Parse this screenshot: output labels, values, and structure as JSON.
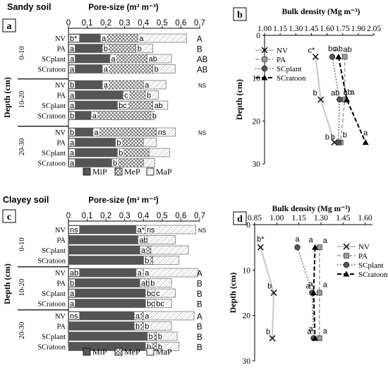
{
  "chart_data": [
    {
      "type": "bar",
      "panel": "a",
      "title": "Sandy soil",
      "xlabel": "Pore-size (m³ m⁻³)",
      "ylabel": "Depth (cm)",
      "xlim": [
        0,
        0.7
      ],
      "xticks": [
        "0",
        "0.1",
        "0.2",
        "0.3",
        "0.4",
        "0.5",
        "0.6",
        "0.7"
      ],
      "layers": [
        {
          "label": "0-10",
          "side": "A\nB\nAB\nAB"
        },
        {
          "label": "10-20",
          "side": "NS"
        },
        {
          "label": "20-30",
          "side": "NS"
        }
      ],
      "treatments": [
        "NV",
        "PA",
        "SCplant",
        "SCratoon"
      ],
      "legend": [
        "MiP",
        "MeP",
        "MaP"
      ],
      "rows": [
        {
          "layer": 0,
          "t": "NV",
          "MiP": 0.17,
          "MeP": 0.2,
          "MaP": 0.26,
          "lMi": "b*",
          "lMe": "a",
          "lMa": "a",
          "side": "A"
        },
        {
          "layer": 0,
          "t": "PA",
          "MiP": 0.18,
          "MeP": 0.18,
          "MaP": 0.09,
          "lMi": "a",
          "lMe": "b",
          "lMa": "b",
          "side": "B"
        },
        {
          "layer": 0,
          "t": "SCplant",
          "MiP": 0.22,
          "MeP": 0.2,
          "MaP": 0.13,
          "lMi": "a",
          "lMe": "a",
          "lMa": "ab",
          "side": "AB"
        },
        {
          "layer": 0,
          "t": "SCratoon",
          "MiP": 0.18,
          "MeP": 0.27,
          "MaP": 0.12,
          "lMi": "a",
          "lMe": "a",
          "lMa": "b",
          "side": "AB"
        },
        {
          "layer": 1,
          "t": "NV",
          "MiP": 0.18,
          "MeP": 0.22,
          "MaP": 0.12,
          "lMi": "b",
          "lMe": "a",
          "lMa": "a",
          "side": ""
        },
        {
          "layer": 1,
          "t": "PA",
          "MiP": 0.29,
          "MeP": 0.12,
          "MaP": 0.07,
          "lMi": "a",
          "lMe": "c",
          "lMa": "b",
          "side": ""
        },
        {
          "layer": 1,
          "t": "SCplant",
          "MiP": 0.26,
          "MeP": 0.19,
          "MaP": 0.08,
          "lMi": "a",
          "lMe": "bc",
          "lMa": "ab",
          "side": ""
        },
        {
          "layer": 1,
          "t": "SCratoon",
          "MiP": 0.12,
          "MeP": 0.32,
          "MaP": 0.02,
          "lMi": "b",
          "lMe": "a",
          "lMa": "b",
          "side": ""
        },
        {
          "layer": 2,
          "t": "NV",
          "MiP": 0.13,
          "MeP": 0.34,
          "MaP": 0.1,
          "lMi": "b",
          "lMe": "a",
          "lMa": "ns",
          "side": ""
        },
        {
          "layer": 2,
          "t": "PA",
          "MiP": 0.25,
          "MeP": 0.15,
          "MaP": 0.07,
          "lMi": "a",
          "lMe": "b",
          "lMa": "",
          "side": ""
        },
        {
          "layer": 2,
          "t": "SCplant",
          "MiP": 0.26,
          "MeP": 0.17,
          "MaP": 0.11,
          "lMi": "a",
          "lMe": "b",
          "lMa": "",
          "side": ""
        },
        {
          "layer": 2,
          "t": "SCratoon",
          "MiP": 0.23,
          "MeP": 0.17,
          "MaP": 0.06,
          "lMi": "a",
          "lMe": "b",
          "lMa": "",
          "side": ""
        }
      ]
    },
    {
      "type": "line",
      "panel": "b",
      "xlabel": "Bulk density (Mg m⁻³)",
      "ylabel": "Depth (cm)",
      "xlim": [
        1.0,
        2.05
      ],
      "xticks": [
        "1.00",
        "1.15",
        "1.30",
        "1.45",
        "1.60",
        "1.75",
        "1.90",
        "2.05"
      ],
      "ylim": [
        0,
        30
      ],
      "yticks": [
        "0",
        "10",
        "20",
        "30"
      ],
      "depths": [
        5,
        15,
        25
      ],
      "series": [
        {
          "name": "NV",
          "values": [
            1.49,
            1.54,
            1.67
          ],
          "labels": [
            "c*",
            "b",
            "b"
          ]
        },
        {
          "name": "PA",
          "values": [
            1.77,
            1.77,
            1.73
          ],
          "labels": [
            "ab",
            "ab",
            "b"
          ]
        },
        {
          "name": "SCplant",
          "values": [
            1.65,
            1.72,
            1.71
          ],
          "labels": [
            "bc",
            "ab",
            "b"
          ]
        },
        {
          "name": "SCratoon",
          "values": [
            1.71,
            1.79,
            1.97
          ],
          "labels": [
            "ab",
            "a",
            "a"
          ]
        }
      ]
    },
    {
      "type": "bar",
      "panel": "c",
      "title": "Clayey soil",
      "xlabel": "Pore-size (m³ m⁻³)",
      "ylabel": "Depth (cm)",
      "xlim": [
        0,
        0.7
      ],
      "xticks": [
        "0",
        "0.1",
        "0.2",
        "0.3",
        "0.4",
        "0.5",
        "0.6",
        "0.7"
      ],
      "layers": [
        {
          "label": "0-10",
          "side": "NS"
        },
        {
          "label": "10-20",
          "side": "A\nB\nB\nB"
        },
        {
          "label": "20-30",
          "side": "A\nB\nB\nB"
        }
      ],
      "treatments": [
        "NV",
        "PA",
        "SCplant",
        "SCratoon"
      ],
      "legend": [
        "MiP",
        "MeP",
        "MaP"
      ],
      "rows": [
        {
          "layer": 0,
          "t": "NV",
          "MiP": 0.36,
          "MeP": 0.05,
          "MaP": 0.27,
          "lMi": "ns",
          "lMe": "a*",
          "lMa": "ns",
          "side": ""
        },
        {
          "layer": 0,
          "t": "PA",
          "MiP": 0.37,
          "MeP": 0.05,
          "MaP": 0.15,
          "lMi": "",
          "lMe": "ab",
          "lMa": "",
          "side": ""
        },
        {
          "layer": 0,
          "t": "SCplant",
          "MiP": 0.38,
          "MeP": 0.06,
          "MaP": 0.2,
          "lMi": "",
          "lMe": "a",
          "lMa": "",
          "side": ""
        },
        {
          "layer": 0,
          "t": "SCratoon",
          "MiP": 0.4,
          "MeP": 0.05,
          "MaP": 0.14,
          "lMi": "",
          "lMe": "b",
          "lMa": "",
          "side": ""
        },
        {
          "layer": 1,
          "t": "NV",
          "MiP": 0.36,
          "MeP": 0.04,
          "MaP": 0.29,
          "lMi": "ab",
          "lMe": "a",
          "lMa": "a",
          "side": "A"
        },
        {
          "layer": 1,
          "t": "PA",
          "MiP": 0.38,
          "MeP": 0.05,
          "MaP": 0.12,
          "lMi": "b",
          "lMe": "ab",
          "lMa": "b",
          "side": "B"
        },
        {
          "layer": 1,
          "t": "SCplant",
          "MiP": 0.41,
          "MeP": 0.05,
          "MaP": 0.11,
          "lMi": "a",
          "lMe": "bc",
          "lMa": "c",
          "side": "B"
        },
        {
          "layer": 1,
          "t": "SCratoon",
          "MiP": 0.41,
          "MeP": 0.05,
          "MaP": 0.09,
          "lMi": "a",
          "lMe": "bc",
          "lMa": "bc",
          "side": "B"
        },
        {
          "layer": 2,
          "t": "NV",
          "MiP": 0.35,
          "MeP": 0.05,
          "MaP": 0.27,
          "lMi": "ns",
          "lMe": "a",
          "lMa": "a",
          "side": "A"
        },
        {
          "layer": 2,
          "t": "PA",
          "MiP": 0.35,
          "MeP": 0.05,
          "MaP": 0.15,
          "lMi": "",
          "lMe": "b",
          "lMa": "b",
          "side": "B"
        },
        {
          "layer": 2,
          "t": "SCplant",
          "MiP": 0.42,
          "MeP": 0.05,
          "MaP": 0.11,
          "lMi": "",
          "lMe": "b",
          "lMa": "b",
          "side": "B"
        },
        {
          "layer": 2,
          "t": "SCratoon",
          "MiP": 0.41,
          "MeP": 0.06,
          "MaP": 0.12,
          "lMi": "",
          "lMe": "b",
          "lMa": "b",
          "side": "B"
        }
      ]
    },
    {
      "type": "line",
      "panel": "d",
      "xlabel": "Bulk density (Mg m⁻³)",
      "ylabel": "Depth (cm)",
      "xlim": [
        0.85,
        1.65
      ],
      "xticks": [
        "0.85",
        "1.00",
        "1.15",
        "1.30",
        "1.45",
        "1.60"
      ],
      "ylim": [
        0,
        30
      ],
      "yticks": [
        "0",
        "10",
        "20",
        "30"
      ],
      "depths": [
        5,
        15,
        25
      ],
      "series": [
        {
          "name": "NV",
          "values": [
            0.89,
            0.98,
            0.97
          ],
          "labels": [
            "b*",
            "b",
            "b"
          ]
        },
        {
          "name": "PA",
          "values": [
            1.29,
            1.29,
            1.29
          ],
          "labels": [
            "a",
            "a",
            "a"
          ]
        },
        {
          "name": "SCplant",
          "values": [
            1.14,
            1.24,
            1.25
          ],
          "labels": [
            "a",
            "a",
            "a"
          ]
        },
        {
          "name": "SCratoon",
          "values": [
            1.26,
            1.25,
            1.26
          ],
          "labels": [
            "a",
            "a",
            "a"
          ]
        }
      ]
    }
  ]
}
